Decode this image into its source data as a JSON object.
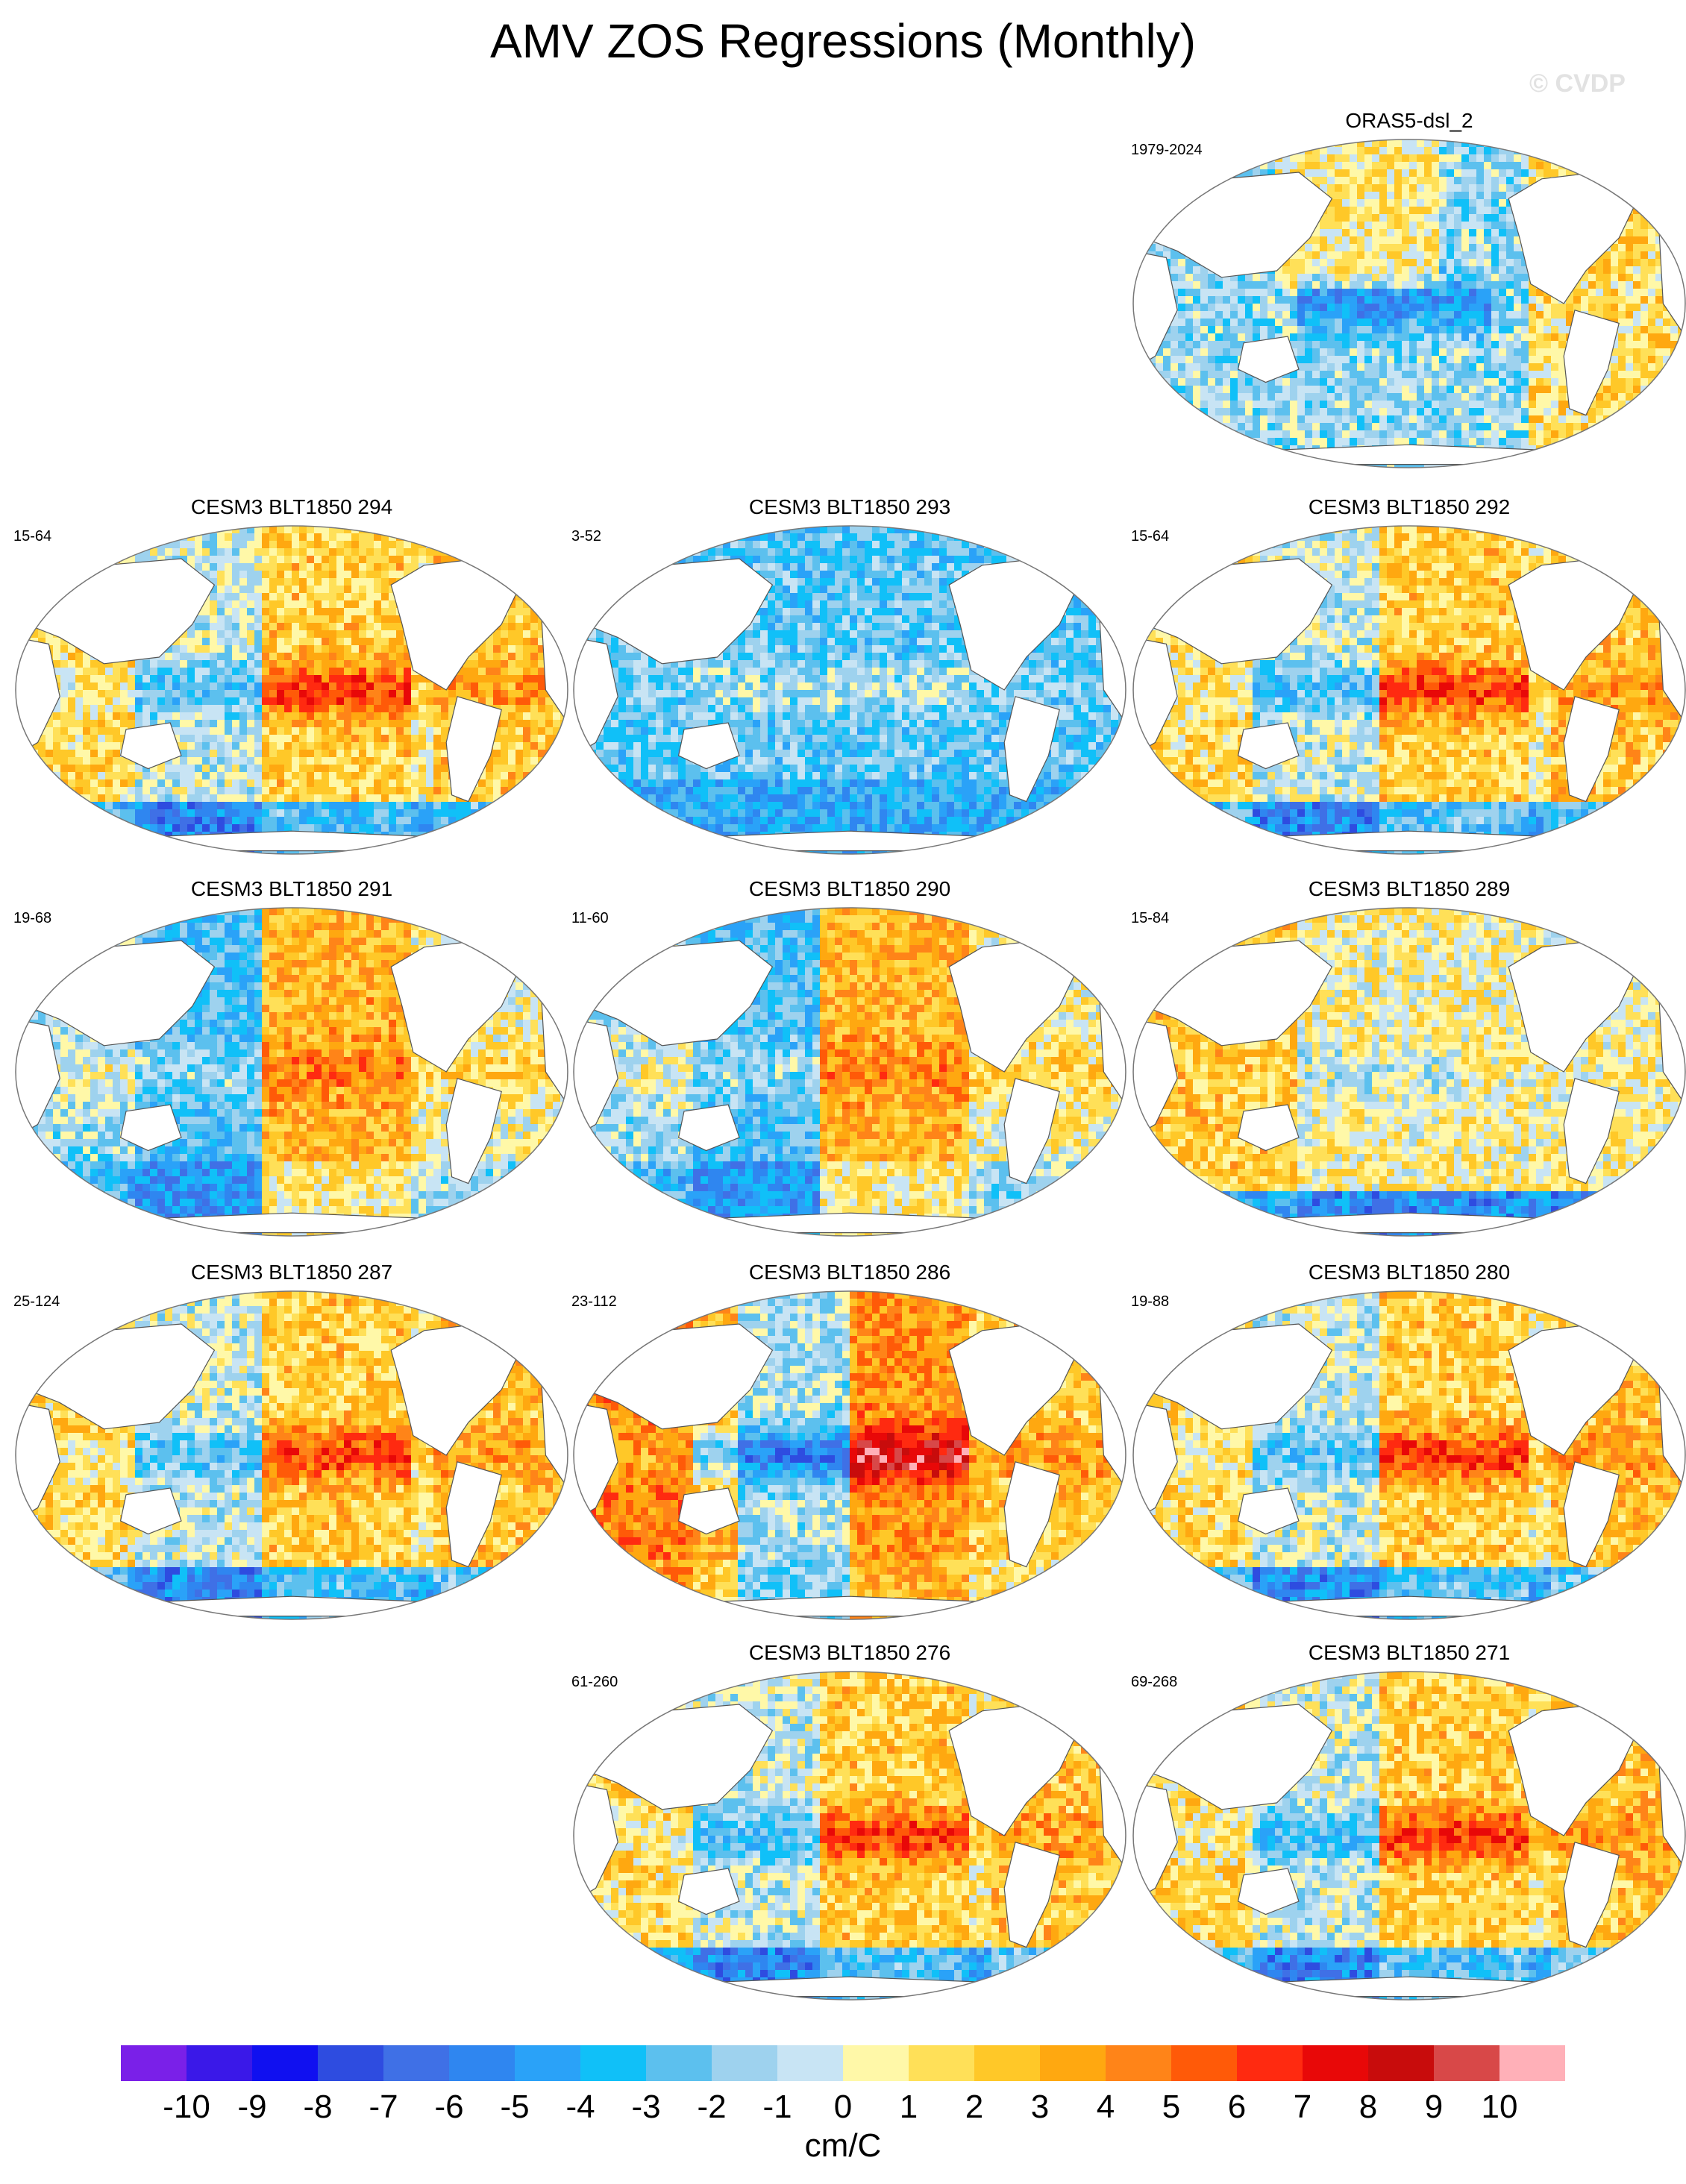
{
  "title": "AMV ZOS Regressions (Monthly)",
  "watermark": "© CVDP",
  "panels": [
    {
      "name": "ORAS5-dsl_2",
      "years": "1979-2024",
      "pattern": "obs"
    },
    {
      "name": "CESM3 BLT1850 294",
      "years": "15-64",
      "pattern": "warm"
    },
    {
      "name": "CESM3 BLT1850 293",
      "years": "3-52",
      "pattern": "cool"
    },
    {
      "name": "CESM3 BLT1850 292",
      "years": "15-64",
      "pattern": "warm"
    },
    {
      "name": "CESM3 BLT1850 291",
      "years": "19-68",
      "pattern": "mixed"
    },
    {
      "name": "CESM3 BLT1850 290",
      "years": "11-60",
      "pattern": "mixed"
    },
    {
      "name": "CESM3 BLT1850 289",
      "years": "15-84",
      "pattern": "neutral"
    },
    {
      "name": "CESM3 BLT1850 287",
      "years": "25-124",
      "pattern": "warm"
    },
    {
      "name": "CESM3 BLT1850 286",
      "years": "23-112",
      "pattern": "strong"
    },
    {
      "name": "CESM3 BLT1850 280",
      "years": "19-88",
      "pattern": "warm"
    },
    {
      "name": "CESM3 BLT1850 276",
      "years": "61-260",
      "pattern": "warm"
    },
    {
      "name": "CESM3 BLT1850 271",
      "years": "69-268",
      "pattern": "warm"
    }
  ],
  "chart_data": {
    "type": "heatmap",
    "title": "AMV ZOS Regressions (Monthly)",
    "projection": "Robinson global ocean maps",
    "units": "cm/C",
    "colorbar_ticks": [
      "-10",
      "-9",
      "-8",
      "-7",
      "-6",
      "-5",
      "-4",
      "-3",
      "-2",
      "-1",
      "0",
      "1",
      "2",
      "3",
      "4",
      "5",
      "6",
      "7",
      "8",
      "9",
      "10"
    ],
    "colorbar_colors": [
      "#7a20e8",
      "#3a18e8",
      "#1010f0",
      "#2e4ce0",
      "#3f70e6",
      "#2f86f0",
      "#2aa2f8",
      "#10c0f8",
      "#5cc0ee",
      "#9ed2ee",
      "#c8e4f4",
      "#fff8a8",
      "#ffe058",
      "#ffc828",
      "#ffa810",
      "#ff8418",
      "#ff5a08",
      "#ff2a10",
      "#e80808",
      "#c80c0c",
      "#d84848",
      "#ffb0b8"
    ]
  }
}
